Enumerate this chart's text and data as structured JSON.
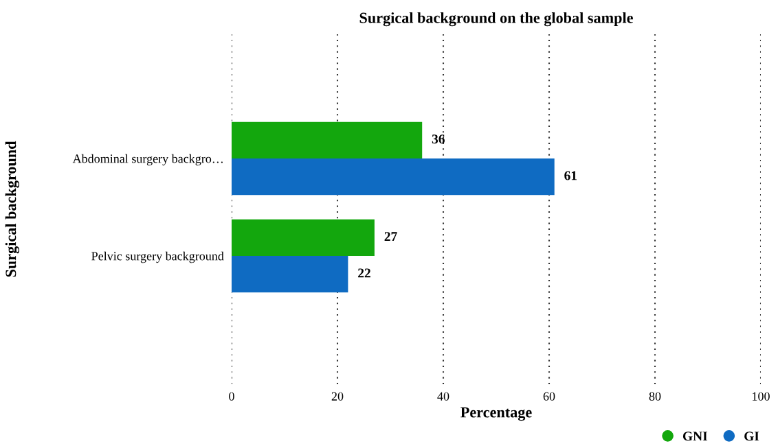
{
  "chart_data": {
    "type": "bar",
    "orientation": "horizontal",
    "title": "Surgical background on the global sample",
    "xlabel": "Percentage",
    "ylabel": "Surgical background",
    "categories": [
      "Abdominal surgery backgro…",
      "Pelvic surgery background"
    ],
    "series": [
      {
        "name": "GNI",
        "color": "#13a70d",
        "values": [
          36,
          27
        ]
      },
      {
        "name": "GI",
        "color": "#0f6bc2",
        "values": [
          61,
          22
        ]
      }
    ],
    "xlim": [
      0,
      100
    ],
    "xticks": [
      0,
      20,
      40,
      60,
      80,
      100
    ],
    "grid": "x",
    "legend": "bottom right",
    "data_labels": true
  }
}
